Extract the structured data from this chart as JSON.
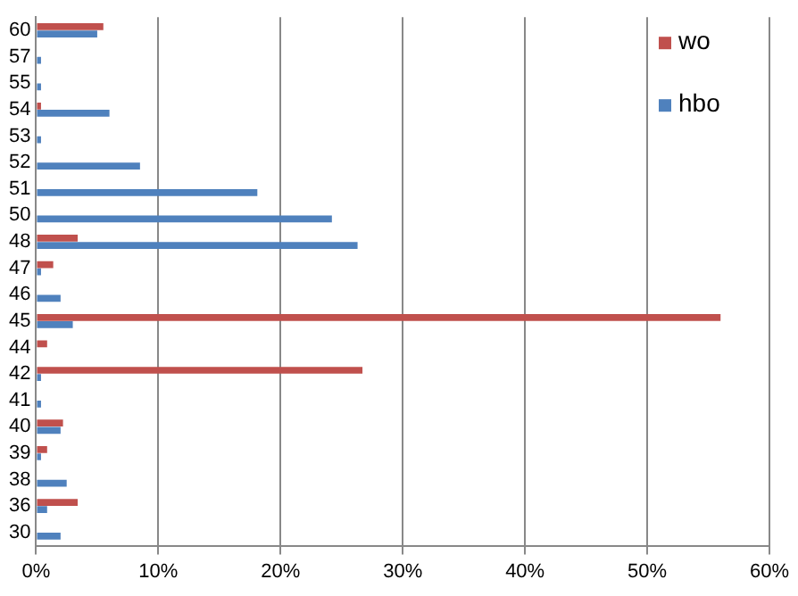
{
  "chart_data": {
    "type": "bar",
    "orientation": "horizontal",
    "categories": [
      "60",
      "57",
      "55",
      "54",
      "53",
      "52",
      "51",
      "50",
      "48",
      "47",
      "46",
      "45",
      "44",
      "42",
      "41",
      "40",
      "39",
      "38",
      "36",
      "30"
    ],
    "series": [
      {
        "name": "wo",
        "color": "#c0504d",
        "values": [
          5.5,
          null,
          null,
          0.4,
          null,
          null,
          null,
          null,
          3.4,
          1.4,
          null,
          56,
          0.9,
          26.7,
          null,
          2.2,
          0.9,
          null,
          3.4,
          null
        ]
      },
      {
        "name": "hbo",
        "color": "#4f81bd",
        "values": [
          5.0,
          0.4,
          0.4,
          6.0,
          0.4,
          8.5,
          18.1,
          24.2,
          26.3,
          0.4,
          2.0,
          3.0,
          null,
          0.4,
          0.4,
          2.0,
          0.4,
          2.5,
          0.9,
          2.0
        ]
      }
    ],
    "xlim": [
      0,
      60
    ],
    "xticks": [
      {
        "value": 0,
        "label": "0%"
      },
      {
        "value": 10,
        "label": "10%"
      },
      {
        "value": 20,
        "label": "20%"
      },
      {
        "value": 30,
        "label": "30%"
      },
      {
        "value": 40,
        "label": "40%"
      },
      {
        "value": 50,
        "label": "50%"
      },
      {
        "value": 60,
        "label": "60%"
      }
    ],
    "grid": "x",
    "legend": "top right"
  }
}
